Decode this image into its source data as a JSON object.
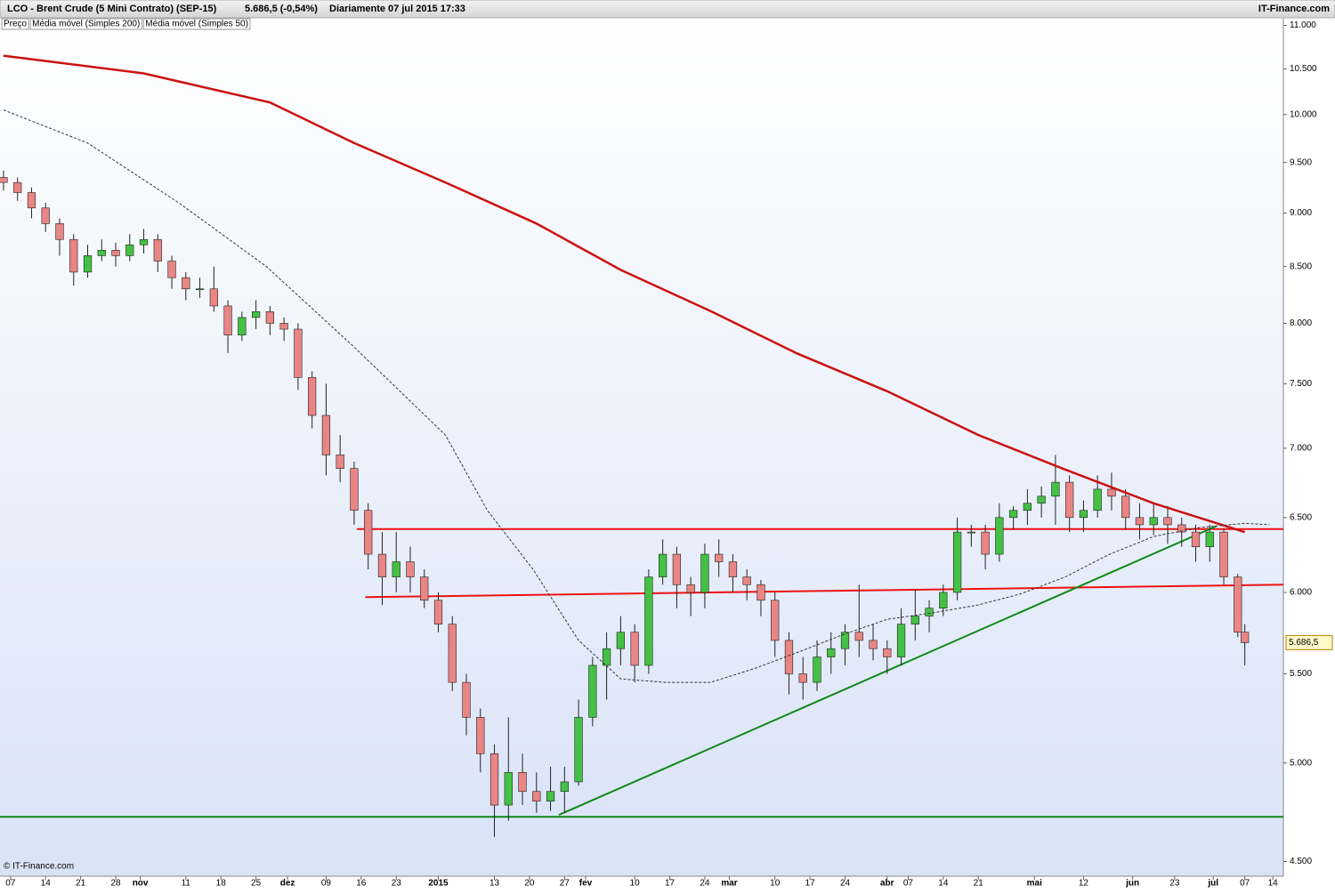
{
  "chart_data": {
    "type": "candlestick",
    "header": {
      "title": "LCO - Brent Crude (5 Mini Contrato) (SEP-15)",
      "quote": "5.686,5 (-0,54%)",
      "period": "Diariamente  07 jul 2015 17:33",
      "brand": "IT-Finance.com"
    },
    "footer": "© IT-Finance.com",
    "log_scale": true,
    "ylim": [
      4.43,
      11.09
    ],
    "yticks": [
      {
        "value": 4.5,
        "label": "4.500"
      },
      {
        "value": 5,
        "label": "5.000"
      },
      {
        "value": 5.5,
        "label": "5.500"
      },
      {
        "value": 6,
        "label": "6.000"
      },
      {
        "value": 6.5,
        "label": "6.500"
      },
      {
        "value": 7,
        "label": "7.000"
      },
      {
        "value": 7.5,
        "label": "7.500"
      },
      {
        "value": 8,
        "label": "8.000"
      },
      {
        "value": 8.5,
        "label": "8.500"
      },
      {
        "value": 9,
        "label": "9.000"
      },
      {
        "value": 9.5,
        "label": "9.500"
      },
      {
        "value": 10,
        "label": "10.000"
      },
      {
        "value": 10.5,
        "label": "10.500"
      },
      {
        "value": 11,
        "label": "11.000"
      }
    ],
    "xlim": [
      -0.5,
      182.5
    ],
    "xticks": [
      {
        "value": 1,
        "label": "07"
      },
      {
        "value": 6,
        "label": "14"
      },
      {
        "value": 11,
        "label": "21"
      },
      {
        "value": 16,
        "label": "28"
      },
      {
        "value": 19.5,
        "label": "nov"
      },
      {
        "value": 26,
        "label": "11"
      },
      {
        "value": 31,
        "label": "18"
      },
      {
        "value": 36,
        "label": "25"
      },
      {
        "value": 40.5,
        "label": "dez"
      },
      {
        "value": 46,
        "label": "09"
      },
      {
        "value": 51,
        "label": "16"
      },
      {
        "value": 56,
        "label": "23"
      },
      {
        "value": 62,
        "label": "2015"
      },
      {
        "value": 70,
        "label": "13"
      },
      {
        "value": 75,
        "label": "20"
      },
      {
        "value": 80,
        "label": "27"
      },
      {
        "value": 83,
        "label": "fev"
      },
      {
        "value": 90,
        "label": "10"
      },
      {
        "value": 95,
        "label": "17"
      },
      {
        "value": 100,
        "label": "24"
      },
      {
        "value": 103.5,
        "label": "mar"
      },
      {
        "value": 110,
        "label": "10"
      },
      {
        "value": 115,
        "label": "17"
      },
      {
        "value": 120,
        "label": "24"
      },
      {
        "value": 126,
        "label": "abr"
      },
      {
        "value": 129,
        "label": "07"
      },
      {
        "value": 134,
        "label": "14"
      },
      {
        "value": 139,
        "label": "21"
      },
      {
        "value": 147,
        "label": "mai"
      },
      {
        "value": 154,
        "label": "12"
      },
      {
        "value": 161,
        "label": "jun"
      },
      {
        "value": 167,
        "label": "23"
      },
      {
        "value": 172.5,
        "label": "jul"
      },
      {
        "value": 177,
        "label": "07"
      },
      {
        "value": 181,
        "label": "14"
      }
    ],
    "last_price": {
      "value": 5.6865,
      "label": "5.686,5"
    },
    "series": [
      {
        "name": "Preço",
        "up_color": "#44c144",
        "down_color": "#e98585",
        "outline": "#222222",
        "x": [
          0,
          2,
          4,
          6,
          8,
          10,
          12,
          14,
          16,
          18,
          20,
          22,
          24,
          26,
          28,
          30,
          32,
          34,
          36,
          38,
          40,
          42,
          44,
          46,
          48,
          50,
          52,
          54,
          56,
          58,
          60,
          62,
          64,
          66,
          68,
          70,
          72,
          74,
          76,
          78,
          80,
          82,
          84,
          86,
          88,
          90,
          92,
          94,
          96,
          98,
          100,
          102,
          104,
          106,
          108,
          110,
          112,
          114,
          116,
          118,
          120,
          122,
          124,
          126,
          128,
          130,
          132,
          134,
          136,
          138,
          140,
          142,
          144,
          146,
          148,
          150,
          152,
          154,
          156,
          158,
          160,
          162,
          164,
          166,
          168,
          170,
          172,
          174,
          176,
          177
        ],
        "ohlc": [
          [
            9.35,
            9.42,
            9.22,
            9.3
          ],
          [
            9.3,
            9.35,
            9.12,
            9.2
          ],
          [
            9.2,
            9.25,
            8.95,
            9.05
          ],
          [
            9.05,
            9.1,
            8.82,
            8.9
          ],
          [
            8.9,
            8.95,
            8.6,
            8.75
          ],
          [
            8.75,
            8.8,
            8.33,
            8.45
          ],
          [
            8.45,
            8.7,
            8.4,
            8.6
          ],
          [
            8.6,
            8.75,
            8.55,
            8.65
          ],
          [
            8.65,
            8.72,
            8.5,
            8.6
          ],
          [
            8.6,
            8.8,
            8.55,
            8.7
          ],
          [
            8.7,
            8.85,
            8.62,
            8.75
          ],
          [
            8.75,
            8.8,
            8.45,
            8.55
          ],
          [
            8.55,
            8.6,
            8.3,
            8.4
          ],
          [
            8.4,
            8.45,
            8.2,
            8.3
          ],
          [
            8.3,
            8.4,
            8.22,
            8.3
          ],
          [
            8.3,
            8.5,
            8.1,
            8.15
          ],
          [
            8.15,
            8.2,
            7.75,
            7.9
          ],
          [
            7.9,
            8.1,
            7.85,
            8.05
          ],
          [
            8.05,
            8.2,
            7.95,
            8.1
          ],
          [
            8.1,
            8.15,
            7.9,
            8.0
          ],
          [
            8.0,
            8.05,
            7.85,
            7.95
          ],
          [
            7.95,
            8.0,
            7.45,
            7.55
          ],
          [
            7.55,
            7.6,
            7.15,
            7.25
          ],
          [
            7.25,
            7.5,
            6.8,
            6.95
          ],
          [
            6.95,
            7.1,
            6.75,
            6.85
          ],
          [
            6.85,
            6.9,
            6.45,
            6.55
          ],
          [
            6.55,
            6.6,
            6.15,
            6.25
          ],
          [
            6.25,
            6.4,
            5.92,
            6.1
          ],
          [
            6.1,
            6.4,
            6.0,
            6.2
          ],
          [
            6.2,
            6.3,
            6.0,
            6.1
          ],
          [
            6.1,
            6.15,
            5.9,
            5.95
          ],
          [
            5.95,
            6.0,
            5.75,
            5.8
          ],
          [
            5.8,
            5.85,
            5.4,
            5.45
          ],
          [
            5.45,
            5.5,
            5.15,
            5.25
          ],
          [
            5.25,
            5.3,
            4.95,
            5.05
          ],
          [
            5.05,
            5.1,
            4.62,
            4.78
          ],
          [
            4.78,
            5.25,
            4.7,
            4.95
          ],
          [
            4.95,
            5.05,
            4.78,
            4.85
          ],
          [
            4.85,
            4.95,
            4.74,
            4.8
          ],
          [
            4.8,
            4.98,
            4.75,
            4.85
          ],
          [
            4.85,
            4.98,
            4.74,
            4.9
          ],
          [
            4.9,
            5.35,
            4.88,
            5.25
          ],
          [
            5.25,
            5.6,
            5.2,
            5.55
          ],
          [
            5.55,
            5.75,
            5.35,
            5.65
          ],
          [
            5.65,
            5.85,
            5.55,
            5.75
          ],
          [
            5.75,
            5.8,
            5.45,
            5.55
          ],
          [
            5.55,
            6.15,
            5.5,
            6.1
          ],
          [
            6.1,
            6.35,
            6.05,
            6.25
          ],
          [
            6.25,
            6.3,
            5.9,
            6.05
          ],
          [
            6.05,
            6.1,
            5.85,
            6.0
          ],
          [
            6.0,
            6.32,
            5.9,
            6.25
          ],
          [
            6.25,
            6.35,
            6.1,
            6.2
          ],
          [
            6.2,
            6.25,
            6.0,
            6.1
          ],
          [
            6.1,
            6.15,
            5.95,
            6.05
          ],
          [
            6.05,
            6.08,
            5.85,
            5.95
          ],
          [
            5.95,
            6.0,
            5.6,
            5.7
          ],
          [
            5.7,
            5.75,
            5.38,
            5.5
          ],
          [
            5.5,
            5.6,
            5.35,
            5.45
          ],
          [
            5.45,
            5.7,
            5.4,
            5.6
          ],
          [
            5.6,
            5.75,
            5.5,
            5.65
          ],
          [
            5.65,
            5.8,
            5.55,
            5.75
          ],
          [
            5.75,
            6.05,
            5.6,
            5.7
          ],
          [
            5.7,
            5.8,
            5.58,
            5.65
          ],
          [
            5.65,
            5.7,
            5.5,
            5.6
          ],
          [
            5.6,
            5.9,
            5.55,
            5.8
          ],
          [
            5.8,
            6.02,
            5.7,
            5.85
          ],
          [
            5.85,
            5.95,
            5.75,
            5.9
          ],
          [
            5.9,
            6.05,
            5.85,
            6.0
          ],
          [
            6.0,
            6.5,
            5.95,
            6.4
          ],
          [
            6.4,
            6.45,
            6.3,
            6.4
          ],
          [
            6.4,
            6.45,
            6.15,
            6.25
          ],
          [
            6.25,
            6.6,
            6.2,
            6.5
          ],
          [
            6.5,
            6.58,
            6.42,
            6.55
          ],
          [
            6.55,
            6.7,
            6.45,
            6.6
          ],
          [
            6.6,
            6.72,
            6.5,
            6.65
          ],
          [
            6.65,
            6.95,
            6.45,
            6.75
          ],
          [
            6.75,
            6.8,
            6.4,
            6.5
          ],
          [
            6.5,
            6.62,
            6.4,
            6.55
          ],
          [
            6.55,
            6.8,
            6.5,
            6.7
          ],
          [
            6.7,
            6.82,
            6.55,
            6.65
          ],
          [
            6.65,
            6.7,
            6.42,
            6.5
          ],
          [
            6.5,
            6.6,
            6.35,
            6.45
          ],
          [
            6.45,
            6.6,
            6.38,
            6.5
          ],
          [
            6.5,
            6.58,
            6.32,
            6.45
          ],
          [
            6.45,
            6.5,
            6.3,
            6.4
          ],
          [
            6.4,
            6.45,
            6.2,
            6.3
          ],
          [
            6.3,
            6.45,
            6.2,
            6.4
          ],
          [
            6.4,
            6.42,
            6.05,
            6.1
          ],
          [
            6.1,
            6.12,
            5.72,
            5.75
          ],
          [
            5.75,
            5.8,
            5.55,
            5.6865
          ]
        ]
      },
      {
        "name": "Média móvel (Simples 200)",
        "type": "line",
        "color": "#cc1111",
        "width": 2.5,
        "x": [
          0,
          20,
          38,
          50,
          63,
          76,
          88,
          101,
          113,
          126,
          139,
          151,
          164,
          177
        ],
        "values": [
          10.65,
          10.45,
          10.13,
          9.7,
          9.3,
          8.9,
          8.47,
          8.1,
          7.75,
          7.44,
          7.1,
          6.85,
          6.6,
          6.4
        ]
      },
      {
        "name": "Média móvel (Simples 50)",
        "type": "line",
        "color": "#333333",
        "width": 1,
        "dashed": true,
        "x": [
          0,
          12,
          25,
          37.5,
          50,
          63,
          69,
          75.5,
          82,
          88,
          94.4,
          100.8,
          107,
          113.4,
          120,
          126,
          132.4,
          139,
          145,
          151.4,
          157.7,
          164,
          170.4,
          177,
          180.5
        ],
        "values": [
          10.05,
          9.7,
          9.1,
          8.5,
          7.8,
          7.1,
          6.55,
          6.15,
          5.7,
          5.47,
          5.45,
          5.45,
          5.53,
          5.63,
          5.74,
          5.83,
          5.87,
          5.92,
          5.99,
          6.1,
          6.25,
          6.37,
          6.43,
          6.46,
          6.45
        ]
      }
    ],
    "trendlines": [
      {
        "color": "#ee1111",
        "x": [
          50.4,
          182.5
        ],
        "values": [
          6.42,
          6.42
        ]
      },
      {
        "color": "#ee1111",
        "x": [
          51.6,
          182.5
        ],
        "values": [
          5.97,
          6.05
        ]
      },
      {
        "color": "#11881a",
        "x": [
          79.2,
          172.9
        ],
        "values": [
          4.73,
          6.44
        ]
      },
      {
        "color": "#11881a",
        "x": [
          -0.5,
          182.5
        ],
        "values": [
          4.72,
          4.72
        ]
      }
    ]
  }
}
